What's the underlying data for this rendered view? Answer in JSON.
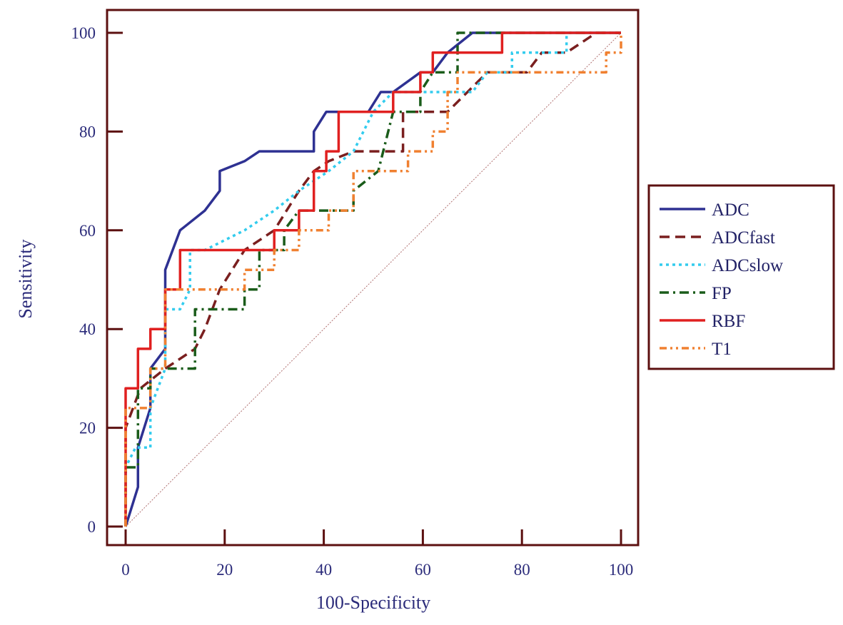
{
  "chart_data": {
    "type": "line",
    "title": "",
    "xlabel": "100-Specificity",
    "ylabel": "Sensitivity",
    "xlim": [
      0,
      100
    ],
    "ylim": [
      0,
      100
    ],
    "x_ticks": [
      0,
      20,
      40,
      60,
      80,
      100
    ],
    "y_ticks": [
      0,
      20,
      40,
      60,
      80,
      100
    ],
    "frame_color": "#5c1010",
    "legend_position": "right",
    "reference_line": {
      "name": "chance",
      "color": "#b07070",
      "x": [
        0,
        100
      ],
      "y": [
        0,
        100
      ]
    },
    "series": [
      {
        "name": "ADC",
        "color": "#2e3192",
        "dash": "solid",
        "points": [
          [
            0,
            0
          ],
          [
            2.5,
            8
          ],
          [
            2.5,
            16
          ],
          [
            5,
            24
          ],
          [
            5,
            32
          ],
          [
            8,
            36
          ],
          [
            8,
            52
          ],
          [
            11,
            60
          ],
          [
            16,
            64
          ],
          [
            19,
            68
          ],
          [
            19,
            72
          ],
          [
            24,
            74
          ],
          [
            27,
            76
          ],
          [
            38,
            76
          ],
          [
            38,
            80
          ],
          [
            40.5,
            84
          ],
          [
            46,
            84
          ],
          [
            49,
            84
          ],
          [
            51.5,
            88
          ],
          [
            54,
            88
          ],
          [
            59.5,
            92
          ],
          [
            62,
            92
          ],
          [
            65,
            96
          ],
          [
            70,
            100
          ],
          [
            100,
            100
          ]
        ]
      },
      {
        "name": "ADCfast",
        "color": "#7a1f1f",
        "dash": "dashed",
        "points": [
          [
            0,
            0
          ],
          [
            0,
            20
          ],
          [
            1.5,
            24
          ],
          [
            3,
            28
          ],
          [
            8,
            32
          ],
          [
            14,
            36
          ],
          [
            16,
            40
          ],
          [
            19,
            48
          ],
          [
            24,
            56
          ],
          [
            30,
            60
          ],
          [
            35,
            68
          ],
          [
            38,
            72
          ],
          [
            41,
            74
          ],
          [
            46,
            76
          ],
          [
            51,
            76
          ],
          [
            56,
            76
          ],
          [
            56,
            84
          ],
          [
            65,
            84
          ],
          [
            73,
            92
          ],
          [
            81,
            92
          ],
          [
            84,
            96
          ],
          [
            89,
            96
          ],
          [
            95,
            100
          ],
          [
            100,
            100
          ]
        ]
      },
      {
        "name": "ADCslow",
        "color": "#33ccee",
        "dash": "dotted",
        "points": [
          [
            0,
            0
          ],
          [
            0,
            12
          ],
          [
            2,
            16
          ],
          [
            5,
            16
          ],
          [
            5,
            24
          ],
          [
            8,
            32
          ],
          [
            8,
            44
          ],
          [
            11,
            44
          ],
          [
            13,
            48
          ],
          [
            13,
            56
          ],
          [
            16,
            56
          ],
          [
            24,
            60
          ],
          [
            30,
            64
          ],
          [
            35,
            68
          ],
          [
            41,
            72
          ],
          [
            46,
            76
          ],
          [
            50,
            84
          ],
          [
            54,
            88
          ],
          [
            65,
            88
          ],
          [
            70,
            88
          ],
          [
            73,
            92
          ],
          [
            78,
            92
          ],
          [
            78,
            96
          ],
          [
            89,
            96
          ],
          [
            89,
            100
          ],
          [
            100,
            100
          ]
        ]
      },
      {
        "name": "FP",
        "color": "#1a5c1a",
        "dash": "dashdot",
        "points": [
          [
            0,
            0
          ],
          [
            0,
            12
          ],
          [
            2.5,
            12
          ],
          [
            2.5,
            28
          ],
          [
            5,
            28
          ],
          [
            5,
            32
          ],
          [
            8,
            32
          ],
          [
            14,
            32
          ],
          [
            14,
            44
          ],
          [
            24,
            44
          ],
          [
            24,
            48
          ],
          [
            27,
            48
          ],
          [
            27,
            56
          ],
          [
            32,
            56
          ],
          [
            32,
            60
          ],
          [
            35,
            64
          ],
          [
            46,
            64
          ],
          [
            46,
            68
          ],
          [
            51,
            72
          ],
          [
            54,
            84
          ],
          [
            59.5,
            84
          ],
          [
            59.5,
            88
          ],
          [
            62,
            92
          ],
          [
            67,
            92
          ],
          [
            67,
            100
          ],
          [
            70,
            100
          ],
          [
            100,
            100
          ]
        ]
      },
      {
        "name": "RBF",
        "color": "#e02020",
        "dash": "solid",
        "points": [
          [
            0,
            0
          ],
          [
            0,
            28
          ],
          [
            2.5,
            28
          ],
          [
            2.5,
            36
          ],
          [
            5,
            36
          ],
          [
            5,
            40
          ],
          [
            8,
            40
          ],
          [
            8,
            48
          ],
          [
            11,
            48
          ],
          [
            11,
            56
          ],
          [
            30,
            56
          ],
          [
            30,
            60
          ],
          [
            35,
            60
          ],
          [
            35,
            64
          ],
          [
            38,
            64
          ],
          [
            38,
            72
          ],
          [
            40.5,
            72
          ],
          [
            40.5,
            76
          ],
          [
            43,
            76
          ],
          [
            43,
            84
          ],
          [
            54,
            84
          ],
          [
            54,
            88
          ],
          [
            59.5,
            88
          ],
          [
            59.5,
            92
          ],
          [
            62,
            92
          ],
          [
            62,
            96
          ],
          [
            76,
            96
          ],
          [
            76,
            100
          ],
          [
            100,
            100
          ]
        ]
      },
      {
        "name": "T1",
        "color": "#f08030",
        "dash": "dashdotdot",
        "points": [
          [
            0,
            0
          ],
          [
            0,
            24
          ],
          [
            5,
            24
          ],
          [
            5,
            32
          ],
          [
            8,
            32
          ],
          [
            8,
            48
          ],
          [
            24,
            48
          ],
          [
            24,
            52
          ],
          [
            30,
            52
          ],
          [
            30,
            56
          ],
          [
            35,
            56
          ],
          [
            35,
            60
          ],
          [
            41,
            60
          ],
          [
            41,
            64
          ],
          [
            46,
            64
          ],
          [
            46,
            72
          ],
          [
            57,
            72
          ],
          [
            57,
            76
          ],
          [
            62,
            76
          ],
          [
            62,
            80
          ],
          [
            65,
            80
          ],
          [
            65,
            88
          ],
          [
            67,
            88
          ],
          [
            67,
            92
          ],
          [
            97,
            92
          ],
          [
            97,
            96
          ],
          [
            100,
            96
          ],
          [
            100,
            100
          ]
        ]
      }
    ]
  }
}
